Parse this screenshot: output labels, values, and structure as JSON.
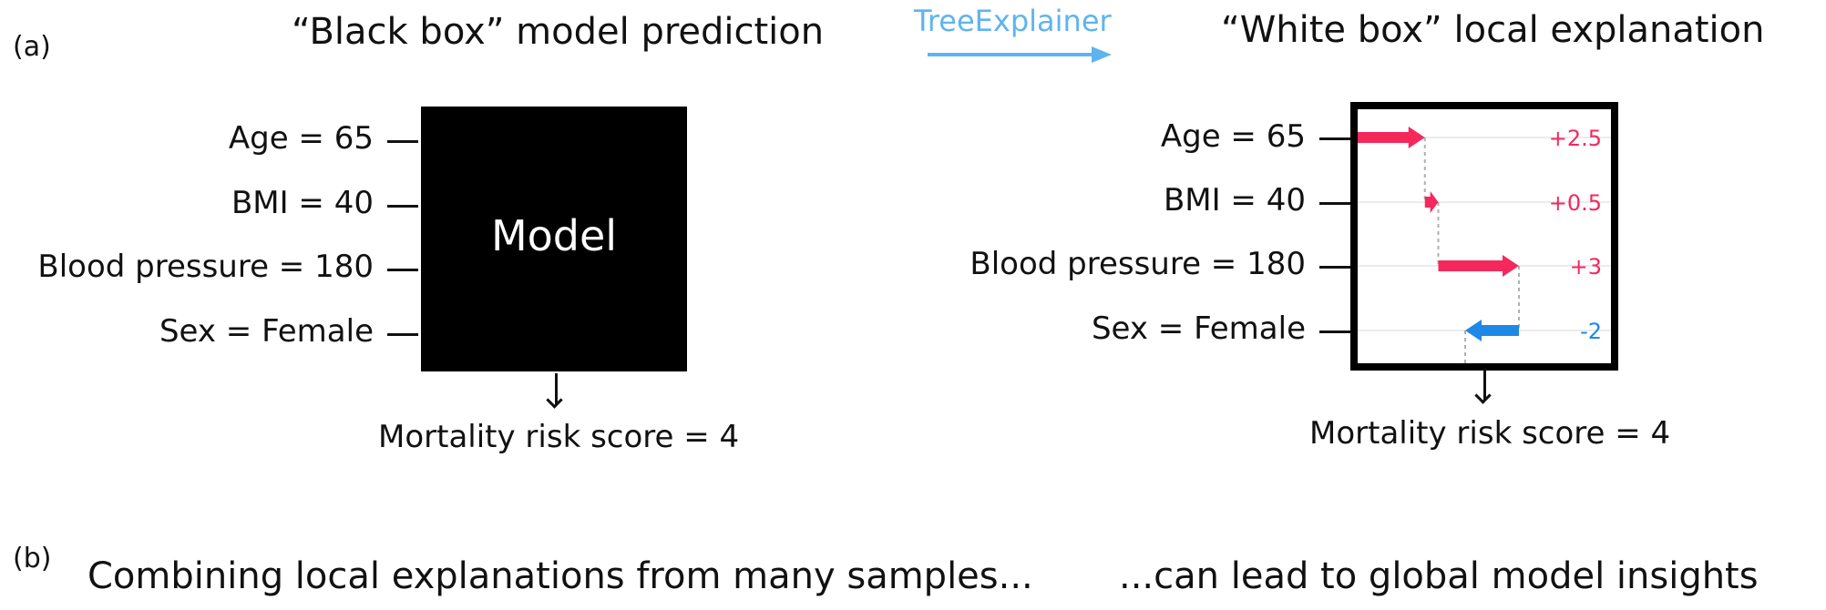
{
  "panel_a": {
    "label": "(a)",
    "black_box_title": "“Black box” model prediction",
    "white_box_title": "“White box” local explanation",
    "explainer_label": "TreeExplainer",
    "model_label": "Model",
    "features": [
      "Age = 65",
      "BMI = 40",
      "Blood pressure = 180",
      "Sex = Female"
    ],
    "output_text": "Mortality risk score = 4",
    "contributions": [
      {
        "feature": "Age = 65",
        "value": 2.5,
        "label": "+2.5"
      },
      {
        "feature": "BMI = 40",
        "value": 0.5,
        "label": "+0.5"
      },
      {
        "feature": "Blood pressure = 180",
        "value": 3,
        "label": "+3"
      },
      {
        "feature": "Sex = Female",
        "value": -2,
        "label": "-2"
      }
    ]
  },
  "panel_b": {
    "label": "(b)",
    "left_heading": "Combining local explanations from many samples...",
    "right_heading": "...can lead to global model insights"
  },
  "colors": {
    "positive": "#f5285c",
    "negative": "#1e88e5",
    "explainer": "#5fb4ee",
    "guide": "#b0b0b0"
  }
}
